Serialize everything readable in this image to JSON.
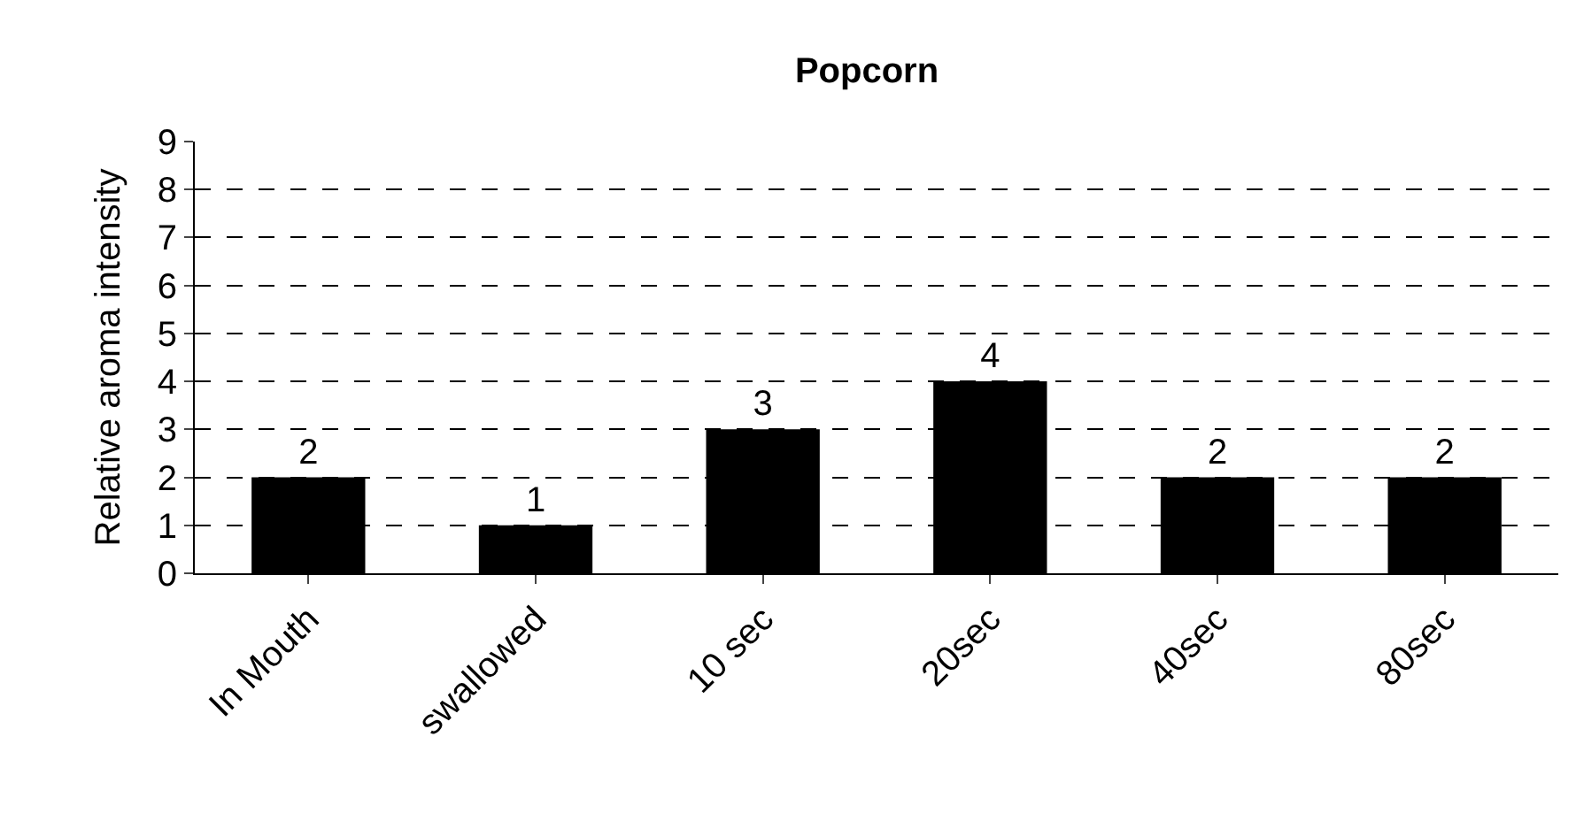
{
  "chart_data": {
    "type": "bar",
    "title": "Popcorn",
    "ylabel": "Relative aroma intensity",
    "categories": [
      "In Mouth",
      "swallowed",
      "10 sec",
      "20sec",
      "40sec",
      "80sec"
    ],
    "values": [
      2,
      1,
      3,
      4,
      2,
      2
    ],
    "color": "#000000",
    "ylim": [
      0,
      9
    ],
    "yticks": [
      0,
      1,
      2,
      3,
      4,
      5,
      6,
      7,
      8,
      9
    ],
    "grid": "y",
    "data_labels": true
  }
}
